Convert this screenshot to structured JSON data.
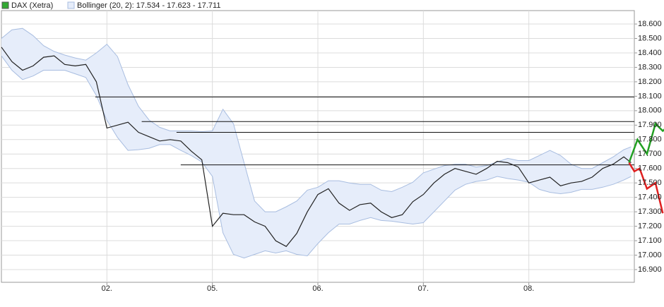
{
  "chart_data": {
    "type": "line",
    "grid": true,
    "xlim": [
      0,
      6
    ],
    "xticks": [
      {
        "value": 1,
        "label": "02."
      },
      {
        "value": 2,
        "label": "05."
      },
      {
        "value": 3,
        "label": "06."
      },
      {
        "value": 4,
        "label": "07."
      },
      {
        "value": 5,
        "label": "08."
      }
    ],
    "ylim": [
      16812,
      18693
    ],
    "yticks": [
      {
        "value": 16900,
        "label": "16.900"
      },
      {
        "value": 17000,
        "label": "17.000"
      },
      {
        "value": 17100,
        "label": "17.100"
      },
      {
        "value": 17200,
        "label": "17.200"
      },
      {
        "value": 17300,
        "label": "17.300"
      },
      {
        "value": 17400,
        "label": "17.400"
      },
      {
        "value": 17500,
        "label": "17.500"
      },
      {
        "value": 17600,
        "label": "17.600"
      },
      {
        "value": 17700,
        "label": "17.700"
      },
      {
        "value": 17800,
        "label": "17.800"
      },
      {
        "value": 17900,
        "label": "17.900"
      },
      {
        "value": 18000,
        "label": "18.000"
      },
      {
        "value": 18100,
        "label": "18.100"
      },
      {
        "value": 18200,
        "label": "18.200"
      },
      {
        "value": 18300,
        "label": "18.300"
      },
      {
        "value": 18400,
        "label": "18.400"
      },
      {
        "value": 18500,
        "label": "18.500"
      },
      {
        "value": 18600,
        "label": "18.600"
      }
    ],
    "x": [
      0,
      0.1,
      0.2,
      0.3,
      0.4,
      0.5,
      0.6,
      0.7,
      0.8,
      0.9,
      1.0,
      1.1,
      1.2,
      1.3,
      1.4,
      1.5,
      1.6,
      1.7,
      1.8,
      1.9,
      2.0,
      2.1,
      2.2,
      2.3,
      2.4,
      2.5,
      2.6,
      2.7,
      2.8,
      2.9,
      3.0,
      3.1,
      3.2,
      3.3,
      3.4,
      3.5,
      3.6,
      3.7,
      3.8,
      3.9,
      4.0,
      4.1,
      4.2,
      4.3,
      4.4,
      4.5,
      4.6,
      4.7,
      4.8,
      4.9,
      5.0,
      5.1,
      5.2,
      5.3,
      5.4,
      5.5,
      5.6,
      5.7,
      5.8,
      5.9,
      5.97
    ],
    "series": [
      {
        "name": "DAX (Xetra)",
        "color": "#33aa33",
        "line_color": "#222222",
        "values": [
          18440,
          18340,
          18280,
          18310,
          18370,
          18380,
          18320,
          18310,
          18320,
          18200,
          17880,
          17900,
          17920,
          17850,
          17820,
          17790,
          17800,
          17790,
          17720,
          17660,
          17200,
          17290,
          17280,
          17280,
          17230,
          17200,
          17100,
          17060,
          17150,
          17300,
          17420,
          17460,
          17360,
          17310,
          17350,
          17360,
          17300,
          17260,
          17280,
          17370,
          17420,
          17500,
          17560,
          17600,
          17580,
          17560,
          17600,
          17650,
          17640,
          17610,
          17500,
          17520,
          17540,
          17480,
          17500,
          17510,
          17540,
          17600,
          17630,
          17680,
          17640
        ]
      }
    ],
    "bands": {
      "name": "Bollinger (20, 2): 17.534 - 17.623 - 17.711",
      "color": "#a8bde0",
      "fill": "#e6edfa",
      "upper": [
        18500,
        18560,
        18570,
        18520,
        18450,
        18410,
        18385,
        18365,
        18350,
        18400,
        18460,
        18375,
        18180,
        18030,
        17935,
        17885,
        17860,
        17860,
        17860,
        17855,
        17860,
        18010,
        17910,
        17640,
        17375,
        17300,
        17300,
        17335,
        17375,
        17450,
        17470,
        17515,
        17515,
        17500,
        17490,
        17490,
        17450,
        17440,
        17470,
        17505,
        17570,
        17595,
        17620,
        17630,
        17630,
        17610,
        17620,
        17645,
        17670,
        17655,
        17655,
        17690,
        17725,
        17690,
        17630,
        17600,
        17600,
        17640,
        17680,
        17730,
        17750
      ],
      "lower": [
        18380,
        18280,
        18215,
        18240,
        18280,
        18280,
        18280,
        18255,
        18230,
        18105,
        17935,
        17815,
        17725,
        17730,
        17740,
        17765,
        17765,
        17725,
        17690,
        17645,
        17545,
        17155,
        17005,
        16980,
        17005,
        17030,
        17015,
        17030,
        17005,
        16995,
        17080,
        17155,
        17215,
        17215,
        17240,
        17260,
        17240,
        17235,
        17225,
        17215,
        17225,
        17300,
        17375,
        17450,
        17490,
        17510,
        17520,
        17545,
        17530,
        17520,
        17505,
        17455,
        17435,
        17425,
        17435,
        17455,
        17455,
        17470,
        17490,
        17520,
        17545
      ]
    },
    "levels": [
      {
        "value": 18095,
        "from": 0.89
      },
      {
        "value": 17925,
        "from": 1.33
      },
      {
        "value": 17850,
        "from": 1.66
      },
      {
        "value": 17625,
        "from": 1.7
      }
    ],
    "forecast": [
      {
        "color": "#22a022",
        "x": [
          5.95,
          6.03,
          6.12,
          6.2,
          6.27,
          6.3
        ],
        "values": [
          17640,
          17800,
          17700,
          17910,
          17860,
          17880
        ]
      },
      {
        "color": "#e02020",
        "x": [
          5.95,
          6.0,
          6.05,
          6.12,
          6.2,
          6.27
        ],
        "values": [
          17640,
          17580,
          17600,
          17460,
          17500,
          17290
        ]
      }
    ]
  }
}
